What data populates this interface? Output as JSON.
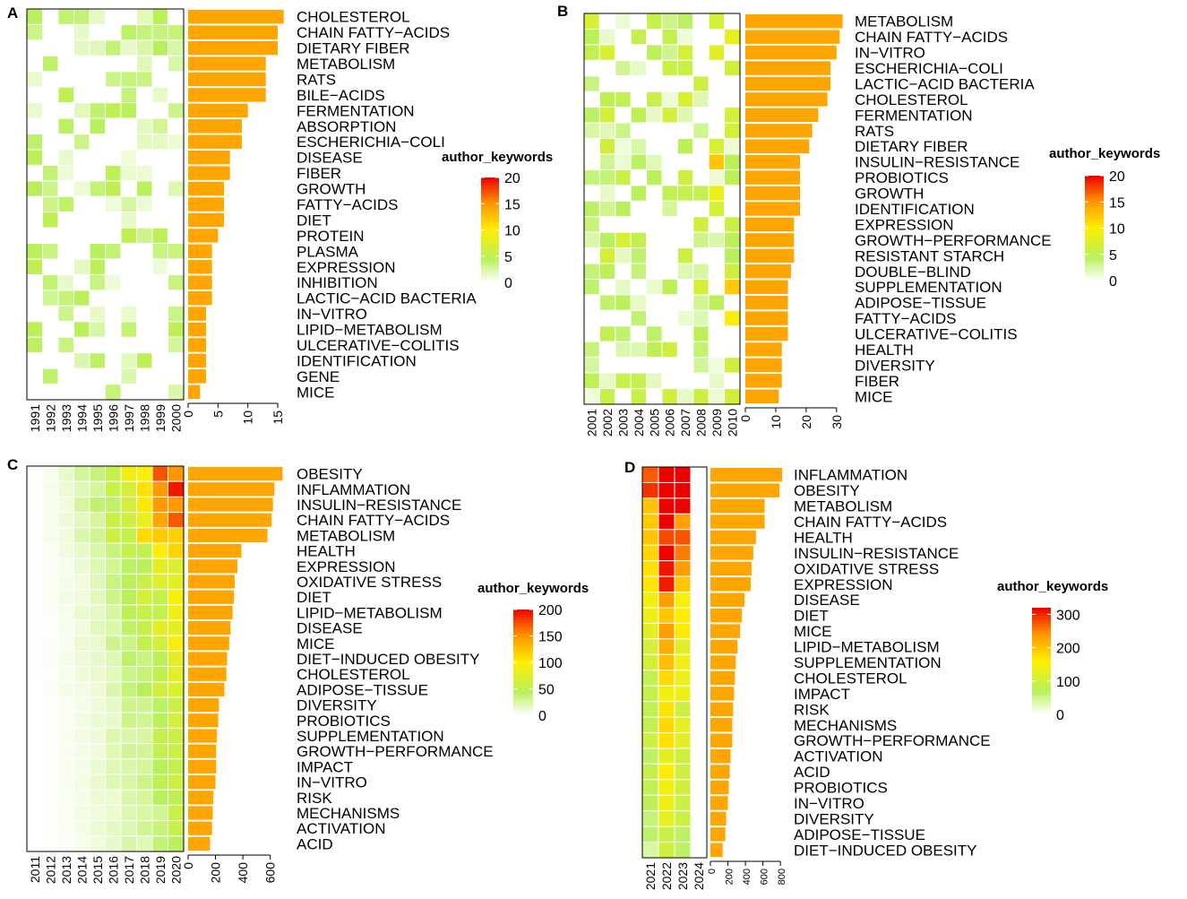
{
  "figure": {
    "colors": {
      "bar": "#FFA500",
      "grid": "#ffffff",
      "frame": "#000000",
      "label": "#000000"
    }
  },
  "chart_data": [
    {
      "type": "heatmap",
      "panel": "A",
      "legend_title": "author_keywords",
      "legend_ticks": [
        0,
        5,
        10,
        15,
        20
      ],
      "color_max": 20,
      "years": [
        "1991",
        "1992",
        "1993",
        "1994",
        "1995",
        "1996",
        "1997",
        "1998",
        "1999",
        "2000"
      ],
      "keywords": [
        "CHOLESTEROL",
        "CHAIN FATTY−ACIDS",
        "DIETARY FIBER",
        "METABOLISM",
        "RATS",
        "BILE−ACIDS",
        "FERMENTATION",
        "ABSORPTION",
        "ESCHERICHIA−COLI",
        "DISEASE",
        "FIBER",
        "GROWTH",
        "FATTY−ACIDS",
        "DIET",
        "PROTEIN",
        "PLASMA",
        "EXPRESSION",
        "INHIBITION",
        "LACTIC−ACID BACTERIA",
        "IN−VITRO",
        "LIPID−METABOLISM",
        "ULCERATIVE−COLITIS",
        "IDENTIFICATION",
        "GENE",
        "MICE"
      ],
      "totals": [
        16,
        15,
        15,
        13,
        13,
        13,
        10,
        9,
        9,
        7,
        7,
        6,
        6,
        6,
        5,
        4,
        4,
        4,
        4,
        3,
        3,
        3,
        3,
        3,
        2
      ],
      "bar_axis_ticks": [
        0,
        5,
        10,
        15
      ],
      "bar_axis_max": 16.5
    },
    {
      "type": "heatmap",
      "panel": "B",
      "legend_title": "author_keywords",
      "legend_ticks": [
        0,
        5,
        10,
        15,
        20
      ],
      "color_max": 20,
      "years": [
        "2001",
        "2002",
        "2003",
        "2004",
        "2005",
        "2006",
        "2007",
        "2008",
        "2009",
        "2010"
      ],
      "keywords": [
        "METABOLISM",
        "CHAIN FATTY−ACIDS",
        "IN−VITRO",
        "ESCHERICHIA−COLI",
        "LACTIC−ACID BACTERIA",
        "CHOLESTEROL",
        "FERMENTATION",
        "RATS",
        "DIETARY FIBER",
        "INSULIN−RESISTANCE",
        "PROBIOTICS",
        "GROWTH",
        "IDENTIFICATION",
        "EXPRESSION",
        "GROWTH−PERFORMANCE",
        "RESISTANT STARCH",
        "DOUBLE−BLIND",
        "SUPPLEMENTATION",
        "ADIPOSE−TISSUE",
        "FATTY−ACIDS",
        "ULCERATIVE−COLITIS",
        "HEALTH",
        "DIVERSITY",
        "FIBER",
        "MICE"
      ],
      "totals": [
        32,
        31,
        30,
        28,
        28,
        27,
        24,
        22,
        21,
        18,
        18,
        18,
        18,
        16,
        16,
        16,
        15,
        14,
        14,
        14,
        14,
        12,
        12,
        12,
        11
      ],
      "bar_axis_ticks": [
        0,
        10,
        20,
        30
      ],
      "bar_axis_max": 33
    },
    {
      "type": "heatmap",
      "panel": "C",
      "legend_title": "author_keywords",
      "legend_ticks": [
        0,
        50,
        100,
        150,
        200
      ],
      "color_max": 200,
      "years": [
        "2011",
        "2012",
        "2013",
        "2014",
        "2015",
        "2016",
        "2017",
        "2018",
        "2019",
        "2020"
      ],
      "keywords": [
        "OBESITY",
        "INFLAMMATION",
        "INSULIN−RESISTANCE",
        "CHAIN FATTY−ACIDS",
        "METABOLISM",
        "HEALTH",
        "EXPRESSION",
        "OXIDATIVE STRESS",
        "DIET",
        "LIPID−METABOLISM",
        "DISEASE",
        "MICE",
        "DIET−INDUCED OBESITY",
        "CHOLESTEROL",
        "ADIPOSE−TISSUE",
        "DIVERSITY",
        "PROBIOTICS",
        "SUPPLEMENTATION",
        "GROWTH−PERFORMANCE",
        "IMPACT",
        "IN−VITRO",
        "RISK",
        "MECHANISMS",
        "ACTIVATION",
        "ACID"
      ],
      "totals": [
        690,
        630,
        620,
        610,
        580,
        390,
        360,
        340,
        335,
        325,
        310,
        300,
        285,
        280,
        265,
        225,
        220,
        210,
        205,
        205,
        200,
        185,
        180,
        175,
        160
      ],
      "bar_axis_ticks": [
        0,
        200,
        400,
        600
      ],
      "bar_axis_max": 720
    },
    {
      "type": "heatmap",
      "panel": "D",
      "legend_title": "author_keywords",
      "legend_ticks": [
        0,
        100,
        200,
        300
      ],
      "color_max": 320,
      "years": [
        "2021",
        "2022",
        "2023",
        "2024"
      ],
      "keywords": [
        "INFLAMMATION",
        "OBESITY",
        "METABOLISM",
        "CHAIN FATTY−ACIDS",
        "HEALTH",
        "INSULIN−RESISTANCE",
        "OXIDATIVE STRESS",
        "EXPRESSION",
        "DISEASE",
        "DIET",
        "MICE",
        "LIPID−METABOLISM",
        "SUPPLEMENTATION",
        "CHOLESTEROL",
        "IMPACT",
        "RISK",
        "MECHANISMS",
        "GROWTH−PERFORMANCE",
        "ACTIVATION",
        "ACID",
        "PROBIOTICS",
        "IN−VITRO",
        "DIVERSITY",
        "ADIPOSE−TISSUE",
        "DIET−INDUCED OBESITY"
      ],
      "totals": [
        820,
        790,
        620,
        620,
        520,
        490,
        470,
        460,
        390,
        360,
        340,
        310,
        290,
        280,
        270,
        260,
        250,
        250,
        230,
        220,
        210,
        200,
        180,
        170,
        140
      ],
      "bar_axis_ticks": [
        0,
        200,
        400,
        600,
        800
      ],
      "bar_axis_max": 870
    }
  ]
}
